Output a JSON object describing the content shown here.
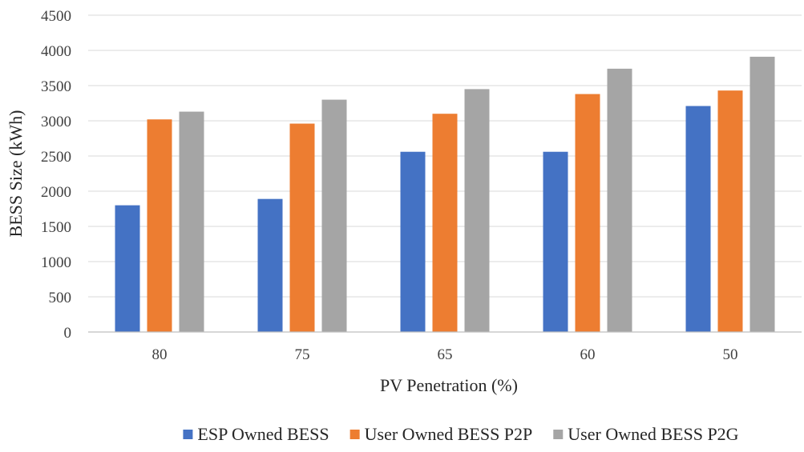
{
  "chart_data": {
    "type": "bar",
    "title": "",
    "xlabel": "PV Penetration (%)",
    "ylabel": "BESS Size (kWh)",
    "categories": [
      "80",
      "75",
      "65",
      "60",
      "50"
    ],
    "ylim": [
      0,
      4500
    ],
    "yticks": [
      0,
      500,
      1000,
      1500,
      2000,
      2500,
      3000,
      3500,
      4000,
      4500
    ],
    "grid": true,
    "legend_position": "bottom",
    "series": [
      {
        "name": "ESP Owned BESS",
        "color": "#4472c4",
        "values": [
          1800,
          1890,
          2560,
          2560,
          3210
        ]
      },
      {
        "name": "User Owned BESS P2P",
        "color": "#ed7d31",
        "values": [
          3020,
          2960,
          3100,
          3380,
          3430
        ]
      },
      {
        "name": "User Owned BESS P2G",
        "color": "#a5a5a5",
        "values": [
          3130,
          3300,
          3450,
          3740,
          3910
        ]
      }
    ]
  }
}
